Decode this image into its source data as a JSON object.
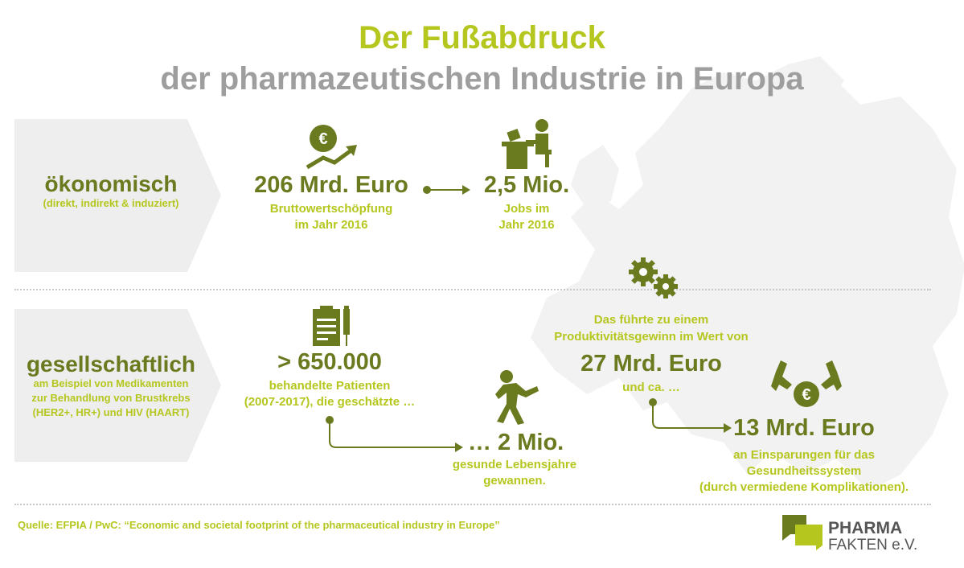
{
  "title": {
    "line1": "Der Fußabdruck",
    "line2": "der pharmazeutischen Industrie in Europa"
  },
  "economic": {
    "label": "ökonomisch",
    "sublabel": "(direkt, indirekt & induziert)",
    "value1": "206 Mrd. Euro",
    "desc1_line1": "Bruttowertschöpfung",
    "desc1_line2": "im Jahr 2016",
    "value2": "2,5 Mio.",
    "desc2_line1": "Jobs im",
    "desc2_line2": "Jahr 2016",
    "icon1": "euro-growth-icon",
    "icon2": "worker-desk-icon"
  },
  "societal": {
    "label": "gesellschaftlich",
    "sub_line1": "am Beispiel von Medikamenten",
    "sub_line2": "zur Behandlung von Brustkrebs",
    "sub_line3": "(HER2+, HR+) und HIV (HAART)",
    "patients_value": "> 650.000",
    "patients_line1": "behandelte Patienten",
    "patients_line2": "(2007-2017), die geschätzte …",
    "years_value": "… 2 Mio.",
    "years_line1": "gesunde Lebensjahre",
    "years_line2": "gewannen.",
    "productivity_line1": "Das führte zu einem",
    "productivity_line2": "Produktivitätsgewinn im Wert von",
    "productivity_value": "27 Mrd. Euro",
    "productivity_after": "und ca. …",
    "savings_value": "13 Mrd. Euro",
    "savings_line1": "an Einsparungen für das",
    "savings_line2": "Gesundheitssystem",
    "savings_line3": "(durch vermiedene Komplikationen).",
    "icons": [
      "clipboard-syringe-icon",
      "running-person-icon",
      "gears-icon",
      "hands-euro-icon"
    ]
  },
  "source": "Quelle: EFPIA / PwC: “Economic and societal footprint of the pharmaceutical industry in Europe”",
  "logo": {
    "line1": "PHARMA",
    "line2": "FAKTEN e.V."
  },
  "colors": {
    "olive": "#6a7a1f",
    "lime": "#b5c71f",
    "grey": "#9e9e9e",
    "panel": "#eeeeee"
  }
}
